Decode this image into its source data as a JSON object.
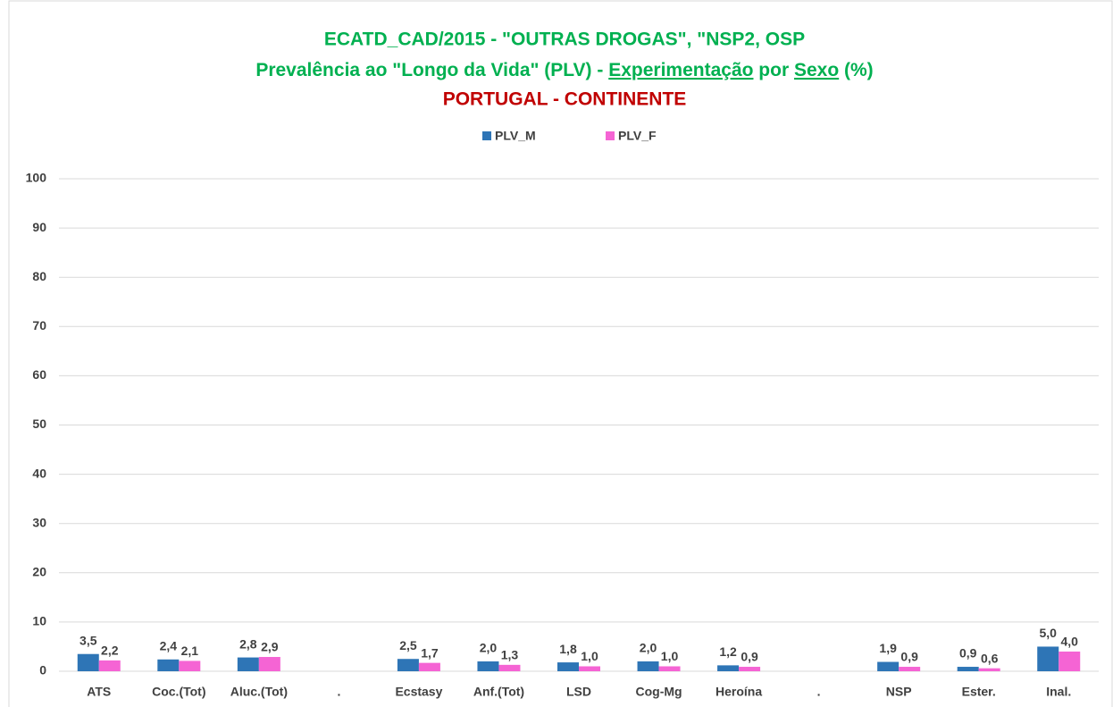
{
  "chart_data": {
    "type": "bar",
    "title": "ECATD_CAD/2015 - \"OUTRAS DROGAS\", \"NSP2, OSP",
    "subtitle": [
      "Prevalência ao \"Longo da Vida\" (PLV) - ",
      "Experimentação",
      " por  ",
      "Sexo",
      " (%)"
    ],
    "region": "PORTUGAL - CONTINENTE",
    "categories": [
      "ATS",
      "Coc.(Tot)",
      "Aluc.(Tot)",
      ".",
      "Ecstasy",
      "Anf.(Tot)",
      "LSD",
      "Cog-Mg",
      "Heroína",
      ".",
      "NSP",
      "Ester.",
      "Inal."
    ],
    "series": [
      {
        "name": "PLV_M",
        "color": "#2e75b6",
        "values": [
          3.5,
          2.4,
          2.8,
          null,
          2.5,
          2.0,
          1.8,
          2.0,
          1.2,
          null,
          1.9,
          0.9,
          5.0
        ],
        "value_labels": [
          "3,5",
          "2,4",
          "2,8",
          null,
          "2,5",
          "2,0",
          "1,8",
          "2,0",
          "1,2",
          null,
          "1,9",
          "0,9",
          "5,0"
        ]
      },
      {
        "name": "PLV_F",
        "color": "#f564d4",
        "values": [
          2.2,
          2.1,
          2.9,
          null,
          1.7,
          1.3,
          1.0,
          1.0,
          0.9,
          null,
          0.9,
          0.6,
          4.0
        ],
        "value_labels": [
          "2,2",
          "2,1",
          "2,9",
          null,
          "1,7",
          "1,3",
          "1,0",
          "1,0",
          "0,9",
          null,
          "0,9",
          "0,6",
          "4,0"
        ]
      }
    ],
    "ylim": [
      0,
      100
    ],
    "yticks": [
      0,
      10,
      20,
      30,
      40,
      50,
      60,
      70,
      80,
      90,
      100
    ],
    "grid": true,
    "legend": "top"
  }
}
